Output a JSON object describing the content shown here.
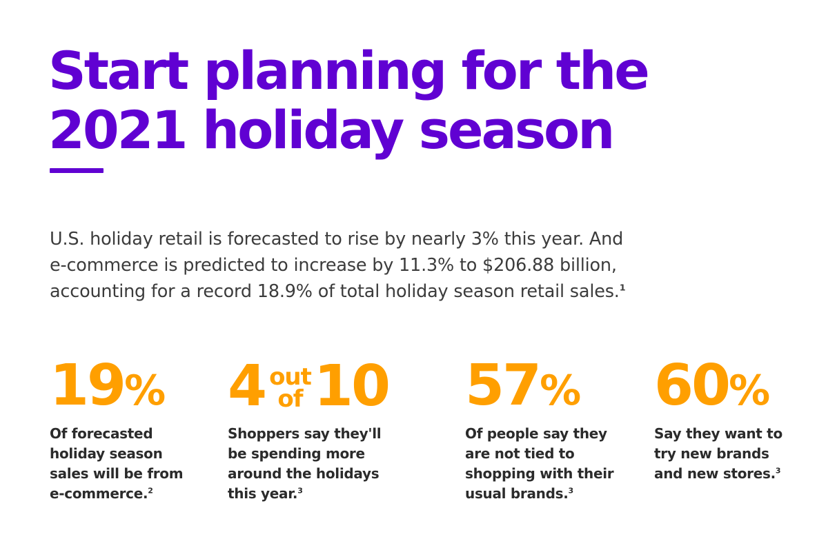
{
  "headline": {
    "line1": "Start planning for the",
    "line2": "2021 holiday season"
  },
  "intro": {
    "line1": "U.S. holiday retail is forecasted to rise by nearly 3% this year. And",
    "line2": "e-commerce is predicted to increase by 11.3% to $206.88 billion,",
    "line3": "accounting for a record 18.9% of total holiday season retail sales.",
    "footnote": "1"
  },
  "stats": [
    {
      "number": "19",
      "unit": "%",
      "lines": [
        "Of forecasted",
        "holiday season",
        "sales will be from",
        "e-commerce."
      ],
      "footnote": "2"
    },
    {
      "number_left": "4",
      "out": "out",
      "of": "of",
      "number_right": "10",
      "lines": [
        "Shoppers say they'll",
        "be spending more",
        "around the holidays",
        "this year."
      ],
      "footnote": "3"
    },
    {
      "number": "57",
      "unit": "%",
      "lines": [
        "Of people say they",
        "are not tied to",
        "shopping with their",
        "usual brands."
      ],
      "footnote": "3"
    },
    {
      "number": "60",
      "unit": "%",
      "lines": [
        "Say they want to",
        "try new brands",
        "and new stores."
      ],
      "footnote": "3"
    }
  ],
  "colors": {
    "headline": "#6001d2",
    "stat_number": "#ff9f00",
    "body_text": "#3c3c3c"
  }
}
